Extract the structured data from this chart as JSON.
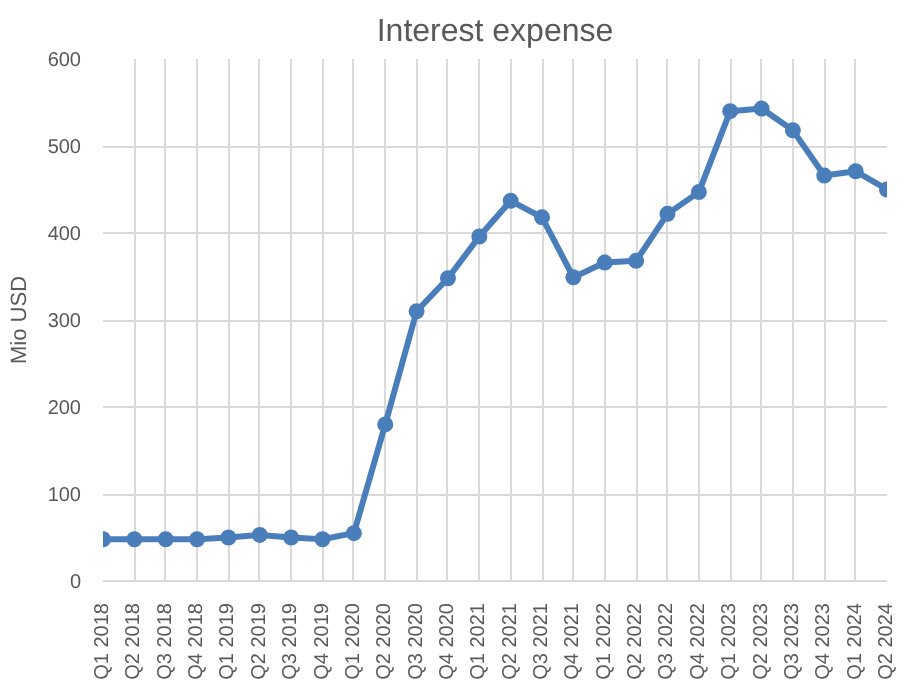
{
  "chart_data": {
    "type": "line",
    "title": "Interest expense",
    "ylabel": "Mio USD",
    "categories": [
      "Q1 2018",
      "Q2 2018",
      "Q3 2018",
      "Q4 2018",
      "Q1 2019",
      "Q2 2019",
      "Q3 2019",
      "Q4 2019",
      "Q1 2020",
      "Q2 2020",
      "Q3 2020",
      "Q4 2020",
      "Q1 2021",
      "Q2 2021",
      "Q3 2021",
      "Q4 2021",
      "Q1 2022",
      "Q2 2022",
      "Q3 2022",
      "Q4 2022",
      "Q1 2023",
      "Q2 2023",
      "Q3 2023",
      "Q4 2023",
      "Q1 2024",
      "Q2 2024"
    ],
    "series": [
      {
        "color": "#4a7ebb",
        "values": [
          48,
          48,
          48,
          48,
          50,
          53,
          50,
          48,
          55,
          180,
          310,
          348,
          396,
          437,
          418,
          349,
          366,
          368,
          422,
          447,
          540,
          543,
          518,
          466,
          471,
          450
        ]
      }
    ],
    "ylim": [
      0,
      600
    ],
    "yticks": [
      0,
      100,
      200,
      300,
      400,
      500,
      600
    ],
    "grid": true,
    "marker": "circle",
    "line_style": "solid"
  }
}
